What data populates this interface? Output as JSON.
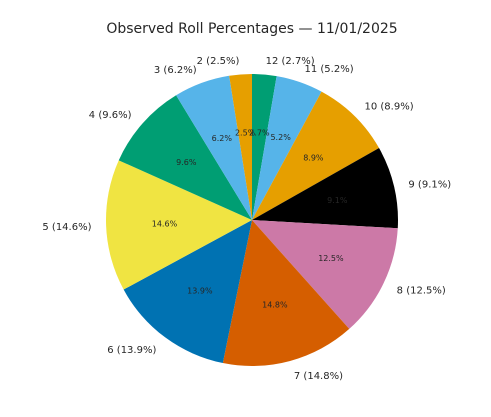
{
  "chart_data": {
    "type": "pie",
    "title": "Observed Roll Percentages — 11/01/2025",
    "start_angle_deg": 90,
    "direction": "clockwise",
    "slices": [
      {
        "label": "12 (2.7%)",
        "value": 2.7,
        "pct_text": "2.7%",
        "color": "#009e73"
      },
      {
        "label": "11 (5.2%)",
        "value": 5.2,
        "pct_text": "5.2%",
        "color": "#56b4e9"
      },
      {
        "label": "10 (8.9%)",
        "value": 8.9,
        "pct_text": "8.9%",
        "color": "#e69f00"
      },
      {
        "label": "9 (9.1%)",
        "value": 9.1,
        "pct_text": "9.1%",
        "color": "#000000"
      },
      {
        "label": "8 (12.5%)",
        "value": 12.5,
        "pct_text": "12.5%",
        "color": "#cc79a7"
      },
      {
        "label": "7 (14.8%)",
        "value": 14.8,
        "pct_text": "14.8%",
        "color": "#d55e00"
      },
      {
        "label": "6 (13.9%)",
        "value": 13.9,
        "pct_text": "13.9%",
        "color": "#0072b2"
      },
      {
        "label": "5 (14.6%)",
        "value": 14.6,
        "pct_text": "14.6%",
        "color": "#f0e442"
      },
      {
        "label": "4 (9.6%)",
        "value": 9.6,
        "pct_text": "9.6%",
        "color": "#009e73"
      },
      {
        "label": "3 (6.2%)",
        "value": 6.2,
        "pct_text": "6.2%",
        "color": "#56b4e9"
      },
      {
        "label": "2 (2.5%)",
        "value": 2.5,
        "pct_text": "2.5%",
        "color": "#e69f00"
      }
    ]
  }
}
